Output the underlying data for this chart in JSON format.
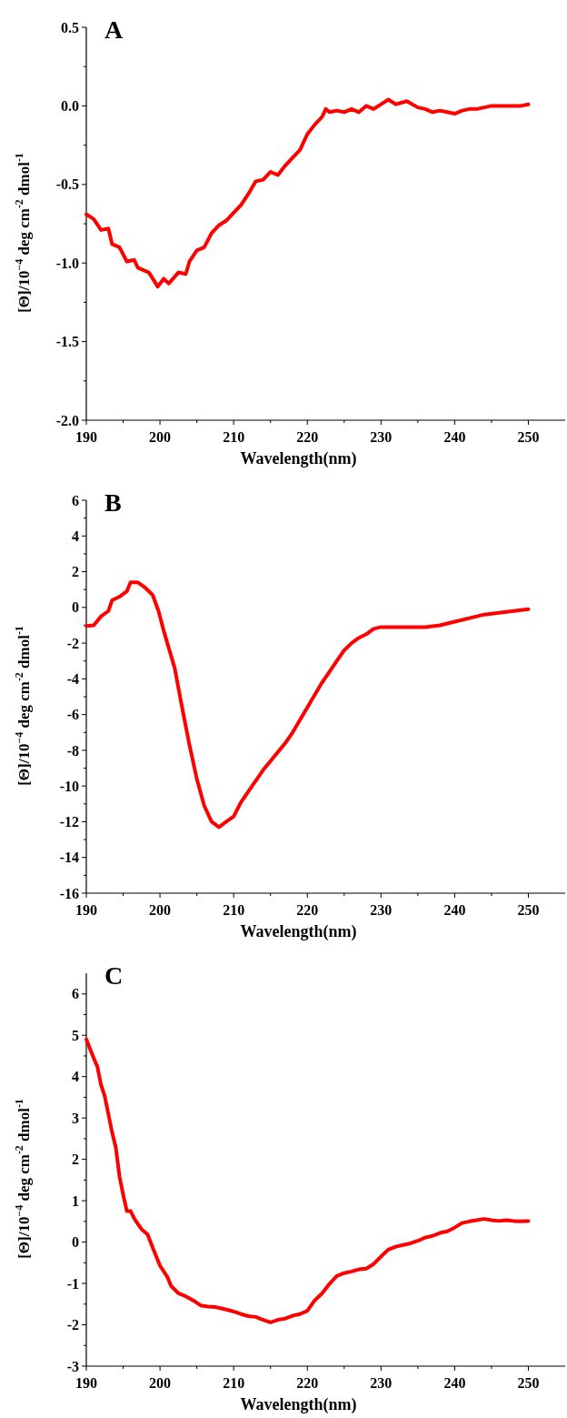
{
  "chart_data": [
    {
      "type": "line",
      "title": "A",
      "xlabel": "Wavelength(nm)",
      "ylabel": "[Θ]/10$^{−4}$ deg cm$^{-2}$ dmol$^{-1}$",
      "xlim": [
        190,
        255
      ],
      "xticks": [
        190,
        {
          "value": 195,
          "label": null
        },
        200,
        {
          "value": 205,
          "label": null
        },
        210,
        {
          "value": 215,
          "label": null
        },
        220,
        {
          "value": 225,
          "label": null
        },
        230,
        {
          "value": 235,
          "label": null
        },
        240,
        {
          "value": 245,
          "label": null
        },
        250
      ],
      "ylim": [
        -2.0,
        0.5
      ],
      "yticks": [
        {
          "value": -2.0,
          "label": "-2.0"
        },
        {
          "value": -1.75,
          "label": null
        },
        {
          "value": -1.5,
          "label": "-1.5"
        },
        {
          "value": -1.25,
          "label": null
        },
        {
          "value": -1.0,
          "label": "-1.0"
        },
        {
          "value": -0.75,
          "label": null
        },
        {
          "value": -0.5,
          "label": "-0.5"
        },
        {
          "value": -0.25,
          "label": null
        },
        {
          "value": 0,
          "label": "0.0"
        },
        {
          "value": 0.25,
          "label": null
        },
        {
          "value": 0.5,
          "label": "0.5"
        }
      ],
      "series": [
        {
          "color": "#ff0000",
          "x": [
            190,
            191,
            192,
            193,
            193.5,
            194.5,
            195.5,
            196.5,
            197,
            198.5,
            199.7,
            200.5,
            201.2,
            202.5,
            203.5,
            204,
            205,
            206,
            207,
            208,
            209,
            210,
            211,
            212,
            213,
            214,
            215,
            216,
            217,
            218,
            219,
            220,
            221,
            222,
            222.5,
            223,
            224,
            225,
            226,
            227,
            228,
            229,
            230,
            231,
            232,
            233.5,
            235,
            236,
            237,
            238,
            239,
            240,
            241,
            242,
            243,
            244,
            245,
            246,
            247,
            248,
            249,
            250
          ],
          "values": [
            -0.69,
            -0.72,
            -0.79,
            -0.78,
            -0.88,
            -0.9,
            -0.99,
            -0.98,
            -1.03,
            -1.06,
            -1.15,
            -1.1,
            -1.13,
            -1.06,
            -1.07,
            -0.99,
            -0.92,
            -0.9,
            -0.81,
            -0.76,
            -0.73,
            -0.68,
            -0.63,
            -0.56,
            -0.48,
            -0.47,
            -0.42,
            -0.44,
            -0.38,
            -0.33,
            -0.28,
            -0.18,
            -0.12,
            -0.07,
            -0.02,
            -0.04,
            -0.03,
            -0.04,
            -0.02,
            -0.04,
            0.0,
            -0.02,
            0.01,
            0.04,
            0.01,
            0.03,
            -0.01,
            -0.02,
            -0.04,
            -0.03,
            -0.04,
            -0.05,
            -0.03,
            -0.02,
            -0.02,
            -0.01,
            0.0,
            0.0,
            0.0,
            0.0,
            0.0,
            0.01
          ]
        }
      ]
    },
    {
      "type": "line",
      "title": "B",
      "xlabel": "Wavelength(nm)",
      "ylabel": "[Θ]/10$^{−4}$ deg cm$^{-2}$ dmol$^{-1}$",
      "xlim": [
        190,
        255
      ],
      "xticks": [
        190,
        {
          "value": 195,
          "label": null
        },
        200,
        {
          "value": 205,
          "label": null
        },
        210,
        {
          "value": 215,
          "label": null
        },
        220,
        {
          "value": 225,
          "label": null
        },
        230,
        {
          "value": 235,
          "label": null
        },
        240,
        {
          "value": 245,
          "label": null
        },
        250
      ],
      "ylim": [
        -16,
        6
      ],
      "yticks": [
        -16,
        {
          "value": -15,
          "label": null
        },
        -14,
        {
          "value": -13,
          "label": null
        },
        -12,
        {
          "value": -11,
          "label": null
        },
        -10,
        {
          "value": -9,
          "label": null
        },
        -8,
        {
          "value": -7,
          "label": null
        },
        -6,
        {
          "value": -5,
          "label": null
        },
        -4,
        {
          "value": -3,
          "label": null
        },
        -2,
        {
          "value": -1,
          "label": null
        },
        0,
        {
          "value": 1,
          "label": null
        },
        2,
        {
          "value": 3,
          "label": null
        },
        4,
        {
          "value": 5,
          "label": null
        },
        6
      ],
      "series": [
        {
          "color": "#ff0000",
          "x": [
            190,
            191,
            192,
            193,
            193.5,
            194.5,
            195.5,
            196,
            197,
            198,
            199,
            199.8,
            200.5,
            202,
            203,
            204,
            205,
            206,
            207,
            208,
            209,
            210,
            211,
            212,
            213,
            214,
            215,
            216,
            217,
            218,
            219,
            220,
            221,
            222,
            223,
            224,
            225,
            226,
            227,
            228,
            229,
            230,
            232,
            234,
            236,
            238,
            240,
            242,
            244,
            246,
            248,
            250
          ],
          "values": [
            -1.04,
            -1.0,
            -0.5,
            -0.2,
            0.4,
            0.6,
            0.9,
            1.4,
            1.4,
            1.1,
            0.7,
            -0.2,
            -1.3,
            -3.4,
            -5.6,
            -7.7,
            -9.6,
            -11.1,
            -12.0,
            -12.3,
            -12.0,
            -11.7,
            -10.9,
            -10.3,
            -9.7,
            -9.1,
            -8.6,
            -8.1,
            -7.6,
            -7.0,
            -6.3,
            -5.6,
            -4.9,
            -4.2,
            -3.6,
            -3.0,
            -2.4,
            -2.0,
            -1.7,
            -1.5,
            -1.2,
            -1.1,
            -1.1,
            -1.1,
            -1.1,
            -1.0,
            -0.8,
            -0.6,
            -0.4,
            -0.3,
            -0.2,
            -0.1
          ]
        }
      ]
    },
    {
      "type": "line",
      "title": "C",
      "xlabel": "Wavelength(nm)",
      "ylabel": "[Θ]/10$^{−4}$ deg cm$^{-2}$ dmol$^{-1}$",
      "xlim": [
        190,
        255
      ],
      "xticks": [
        190,
        {
          "value": 195,
          "label": null
        },
        200,
        {
          "value": 205,
          "label": null
        },
        210,
        {
          "value": 215,
          "label": null
        },
        220,
        {
          "value": 225,
          "label": null
        },
        230,
        {
          "value": 235,
          "label": null
        },
        240,
        {
          "value": 245,
          "label": null
        },
        250
      ],
      "ylim": [
        -3,
        6.5
      ],
      "yticks": [
        -3,
        {
          "value": -2.5,
          "label": null
        },
        -2,
        {
          "value": -1.5,
          "label": null
        },
        -1,
        {
          "value": -0.5,
          "label": null
        },
        0,
        {
          "value": 0.5,
          "label": null
        },
        1,
        {
          "value": 1.5,
          "label": null
        },
        2,
        {
          "value": 2.5,
          "label": null
        },
        3,
        {
          "value": 3.5,
          "label": null
        },
        4,
        {
          "value": 4.5,
          "label": null
        },
        5,
        {
          "value": 5.5,
          "label": null
        },
        6
      ],
      "series": [
        {
          "color": "#ff0000",
          "x": [
            190,
            191,
            191.5,
            192,
            192.5,
            193,
            193.5,
            194,
            194.5,
            195,
            195.5,
            196,
            196.5,
            197,
            197.5,
            198.3,
            199,
            200,
            201,
            201.5,
            202.5,
            203.5,
            204.5,
            205.5,
            206.5,
            207.5,
            209,
            210,
            211,
            212,
            213,
            214,
            215,
            216,
            217,
            218,
            219,
            220,
            221,
            222,
            223,
            224,
            225,
            226,
            227,
            228,
            229,
            230,
            231,
            232,
            233,
            234,
            235,
            236,
            237,
            238,
            239,
            240,
            241,
            242,
            243,
            244,
            245,
            246,
            247,
            248,
            249,
            250
          ],
          "values": [
            4.9,
            4.45,
            4.24,
            3.8,
            3.53,
            3.09,
            2.65,
            2.29,
            1.59,
            1.15,
            0.75,
            0.75,
            0.57,
            0.44,
            0.31,
            0.19,
            -0.13,
            -0.57,
            -0.84,
            -1.06,
            -1.24,
            -1.31,
            -1.41,
            -1.53,
            -1.56,
            -1.57,
            -1.63,
            -1.68,
            -1.74,
            -1.79,
            -1.81,
            -1.88,
            -1.94,
            -1.88,
            -1.85,
            -1.78,
            -1.74,
            -1.66,
            -1.41,
            -1.24,
            -1.01,
            -0.82,
            -0.75,
            -0.71,
            -0.66,
            -0.64,
            -0.53,
            -0.35,
            -0.18,
            -0.11,
            -0.07,
            -0.03,
            0.03,
            0.11,
            0.15,
            0.22,
            0.26,
            0.35,
            0.46,
            0.5,
            0.53,
            0.56,
            0.53,
            0.51,
            0.53,
            0.51,
            0.5,
            0.51
          ]
        }
      ]
    }
  ]
}
